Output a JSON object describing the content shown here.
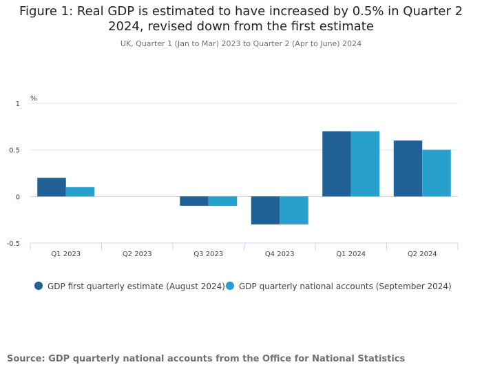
{
  "chart_data": {
    "type": "bar",
    "title": "Figure 1: Real GDP is estimated to have increased by 0.5% in Quarter 2 2024, revised down from the first estimate",
    "title_lines": [
      "Figure 1: Real GDP is estimated to have increased by 0.5% in Quarter 2",
      "2024, revised down from the first estimate"
    ],
    "subtitle": "UK, Quarter 1 (Jan to Mar) 2023 to Quarter 2 (Apr to June) 2024",
    "ylabel": "%",
    "xlabel": "",
    "ylim": [
      -0.5,
      1
    ],
    "yticks": [
      1,
      0.5,
      0,
      -0.5
    ],
    "ytick_labels": [
      "1",
      "0.5",
      "0",
      "-0.5"
    ],
    "grid": true,
    "legend_position": "bottom-left",
    "categories": [
      "Q1 2023",
      "Q2 2023",
      "Q3 2023",
      "Q4 2023",
      "Q1 2024",
      "Q2 2024"
    ],
    "series": [
      {
        "name": "GDP first quarterly estimate (August 2024)",
        "color": "#206095",
        "values": [
          0.2,
          0,
          -0.1,
          -0.3,
          0.7,
          0.6
        ]
      },
      {
        "name": "GDP quarterly national accounts (September 2024)",
        "color": "#27a0cc",
        "values": [
          0.1,
          0,
          -0.1,
          -0.3,
          0.7,
          0.5
        ]
      }
    ],
    "source": "Source: GDP quarterly national accounts from the Office for National Statistics"
  }
}
